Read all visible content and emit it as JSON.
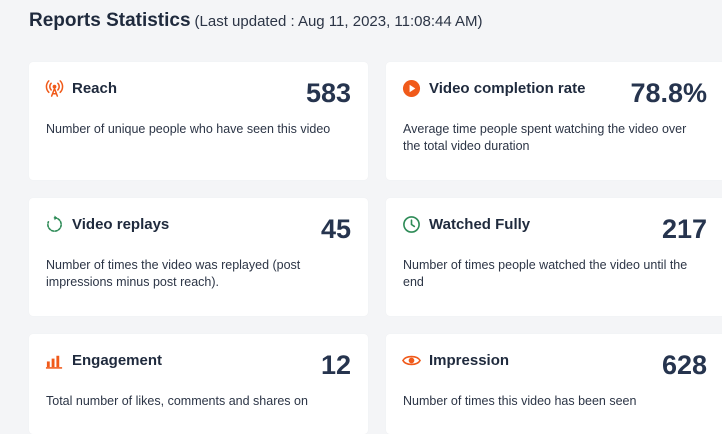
{
  "header": {
    "title": "Reports Statistics",
    "updated": "(Last updated : Aug 11, 2023, 11:08:44 AM)"
  },
  "accent_color": "#f05a1a",
  "completion_icon_color": "#f05a1a",
  "watched_icon_color": "#2e8b57",
  "cards": [
    {
      "icon": "broadcast-icon",
      "title": "Reach",
      "value": "583",
      "description": "Number of unique people who have seen this video"
    },
    {
      "icon": "play-circle-icon",
      "title": "Video completion rate",
      "value": "78.8%",
      "description": "Average time people spent watching the video over the total video duration"
    },
    {
      "icon": "replay-icon",
      "title": "Video replays",
      "value": "45",
      "description": "Number of times the video was replayed (post impressions minus post reach)."
    },
    {
      "icon": "clock-icon",
      "title": "Watched Fully",
      "value": "217",
      "description": "Number of times people watched the video until the end"
    },
    {
      "icon": "bar-chart-icon",
      "title": "Engagement",
      "value": "12",
      "description": "Total number of likes, comments and shares on"
    },
    {
      "icon": "eye-icon",
      "title": "Impression",
      "value": "628",
      "description": "Number of times this video has been seen"
    }
  ]
}
